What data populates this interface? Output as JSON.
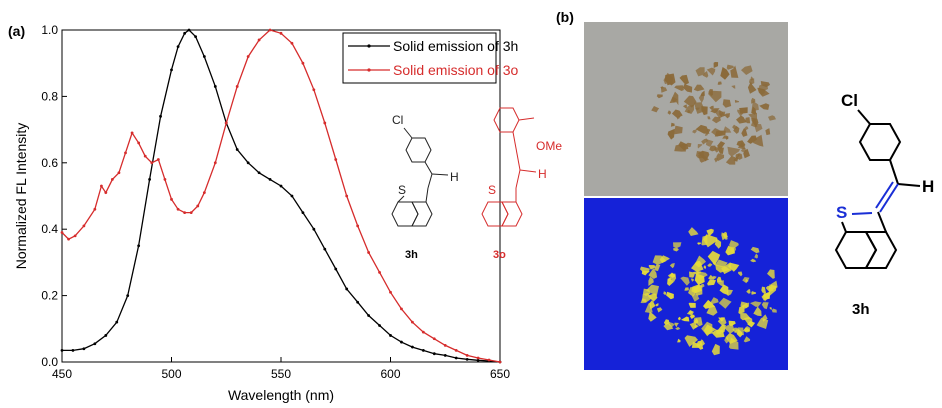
{
  "panel_a_label": "(a)",
  "panel_b_label": "(b)",
  "chart_data": {
    "type": "line",
    "title": "",
    "xlabel": "Wavelength (nm)",
    "ylabel": "Normalized FL Intensity",
    "xlim": [
      450,
      650
    ],
    "ylim": [
      0.0,
      1.0
    ],
    "x_ticks": [
      "450",
      "500",
      "550",
      "600",
      "650"
    ],
    "y_ticks": [
      "0.0",
      "0.2",
      "0.4",
      "0.6",
      "0.8",
      "1.0"
    ],
    "grid": false,
    "legend_position": "top-right",
    "series": [
      {
        "name": "Solid emission of 3h",
        "color": "#000000",
        "points": [
          [
            450,
            0.035
          ],
          [
            455,
            0.035
          ],
          [
            460,
            0.04
          ],
          [
            465,
            0.055
          ],
          [
            470,
            0.08
          ],
          [
            475,
            0.12
          ],
          [
            480,
            0.2
          ],
          [
            485,
            0.35
          ],
          [
            490,
            0.55
          ],
          [
            495,
            0.74
          ],
          [
            500,
            0.88
          ],
          [
            503,
            0.95
          ],
          [
            506,
            0.99
          ],
          [
            508,
            1.0
          ],
          [
            511,
            0.98
          ],
          [
            515,
            0.92
          ],
          [
            520,
            0.83
          ],
          [
            525,
            0.72
          ],
          [
            530,
            0.64
          ],
          [
            535,
            0.6
          ],
          [
            540,
            0.57
          ],
          [
            545,
            0.55
          ],
          [
            550,
            0.53
          ],
          [
            555,
            0.5
          ],
          [
            560,
            0.45
          ],
          [
            565,
            0.4
          ],
          [
            570,
            0.34
          ],
          [
            575,
            0.28
          ],
          [
            580,
            0.22
          ],
          [
            585,
            0.18
          ],
          [
            590,
            0.14
          ],
          [
            595,
            0.11
          ],
          [
            600,
            0.08
          ],
          [
            605,
            0.06
          ],
          [
            610,
            0.045
          ],
          [
            615,
            0.035
          ],
          [
            620,
            0.025
          ],
          [
            625,
            0.02
          ],
          [
            630,
            0.012
          ],
          [
            635,
            0.008
          ],
          [
            640,
            0.005
          ],
          [
            645,
            0.003
          ],
          [
            650,
            0.0
          ]
        ]
      },
      {
        "name": "Solid emission of 3o",
        "color": "#d62c2c",
        "points": [
          [
            450,
            0.39
          ],
          [
            453,
            0.37
          ],
          [
            456,
            0.38
          ],
          [
            460,
            0.41
          ],
          [
            465,
            0.46
          ],
          [
            468,
            0.53
          ],
          [
            470,
            0.51
          ],
          [
            473,
            0.55
          ],
          [
            476,
            0.57
          ],
          [
            479,
            0.63
          ],
          [
            482,
            0.69
          ],
          [
            485,
            0.66
          ],
          [
            488,
            0.62
          ],
          [
            491,
            0.6
          ],
          [
            494,
            0.61
          ],
          [
            497,
            0.55
          ],
          [
            500,
            0.49
          ],
          [
            503,
            0.46
          ],
          [
            506,
            0.45
          ],
          [
            509,
            0.45
          ],
          [
            512,
            0.47
          ],
          [
            515,
            0.51
          ],
          [
            520,
            0.6
          ],
          [
            525,
            0.72
          ],
          [
            530,
            0.83
          ],
          [
            535,
            0.92
          ],
          [
            540,
            0.97
          ],
          [
            545,
            1.0
          ],
          [
            550,
            0.99
          ],
          [
            555,
            0.96
          ],
          [
            560,
            0.9
          ],
          [
            565,
            0.82
          ],
          [
            570,
            0.72
          ],
          [
            575,
            0.61
          ],
          [
            580,
            0.5
          ],
          [
            585,
            0.41
          ],
          [
            590,
            0.33
          ],
          [
            595,
            0.27
          ],
          [
            600,
            0.21
          ],
          [
            605,
            0.16
          ],
          [
            610,
            0.12
          ],
          [
            615,
            0.09
          ],
          [
            620,
            0.07
          ],
          [
            625,
            0.05
          ],
          [
            630,
            0.035
          ],
          [
            635,
            0.02
          ],
          [
            640,
            0.012
          ],
          [
            645,
            0.006
          ],
          [
            650,
            0.0
          ]
        ]
      }
    ],
    "annotations": [
      {
        "name": "3h",
        "color": "#000000"
      },
      {
        "name": "3o",
        "color": "#d62c2c"
      }
    ]
  },
  "molecule_labels": {
    "chloro": "Cl",
    "methoxy": "OMe",
    "hydrogen": "H",
    "sulfur": "S",
    "compound_3h": "3h",
    "compound_3o": "3o"
  },
  "photos": {
    "top_bg": "#a8a8a4",
    "bottom_bg": "#1522d8",
    "crystal_top": "#8b6a3a",
    "crystal_bottom": "#e6dc3a"
  },
  "big_structure": {
    "chloro": "Cl",
    "hydrogen": "H",
    "sulfur": "S",
    "label": "3h",
    "sulfur_color": "#1a2fd6"
  }
}
